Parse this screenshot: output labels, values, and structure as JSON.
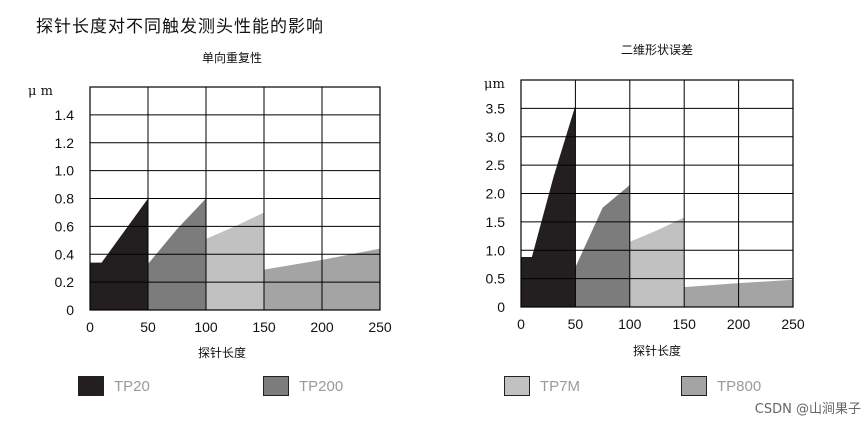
{
  "title": "探针长度对不同触发测头性能的影响",
  "colors": {
    "TP20": "#231f20",
    "TP200": "#7c7c7c",
    "TP7M": "#c1c1c1",
    "TP800": "#a4a4a4"
  },
  "legend": [
    {
      "name": "TP20",
      "color": "#231f20"
    },
    {
      "name": "TP200",
      "color": "#7c7c7c"
    },
    {
      "name": "TP7M",
      "color": "#c1c1c1"
    },
    {
      "name": "TP800",
      "color": "#a4a4a4"
    }
  ],
  "watermark": "CSDN @山涧果子",
  "chart_data": [
    {
      "type": "area",
      "title": "单向重复性",
      "xlabel": "探针长度",
      "ylabel": "μ m",
      "xlim": [
        0,
        250
      ],
      "ylim": [
        0,
        1.6
      ],
      "xticks": [
        0,
        50,
        100,
        150,
        200,
        250
      ],
      "yticks": [
        0,
        0.2,
        0.4,
        0.6,
        0.8,
        1.0,
        1.2,
        1.4
      ],
      "ytick_labels": [
        "0",
        "0.2",
        "0.4",
        "0.6",
        "0.8",
        "1.0",
        "1.2",
        "1.4"
      ],
      "grid": true,
      "series": [
        {
          "name": "TP800",
          "points": [
            [
              0,
              0.17
            ],
            [
              50,
              0.17
            ],
            [
              100,
              0.23
            ],
            [
              150,
              0.29
            ],
            [
              200,
              0.36
            ],
            [
              250,
              0.44
            ]
          ]
        },
        {
          "name": "TP7M",
          "points": [
            [
              100,
              0.51
            ],
            [
              125,
              0.6
            ],
            [
              150,
              0.7
            ]
          ]
        },
        {
          "name": "TP200",
          "points": [
            [
              50,
              0.33
            ],
            [
              75,
              0.58
            ],
            [
              100,
              0.8
            ]
          ]
        },
        {
          "name": "TP20",
          "points": [
            [
              0,
              0.34
            ],
            [
              10,
              0.34
            ],
            [
              50,
              0.8
            ]
          ]
        }
      ]
    },
    {
      "type": "area",
      "title": "二维形状误差",
      "xlabel": "探针长度",
      "ylabel": "μm",
      "xlim": [
        0,
        250
      ],
      "ylim": [
        0,
        4.0
      ],
      "xticks": [
        0,
        50,
        100,
        150,
        200,
        250
      ],
      "yticks": [
        0,
        0.5,
        1.0,
        1.5,
        2.0,
        2.5,
        3.0,
        3.5
      ],
      "ytick_labels": [
        "0",
        "0.5",
        "1.0",
        "1.5",
        "2.0",
        "2.5",
        "3.0",
        "3.5"
      ],
      "grid": true,
      "series": [
        {
          "name": "TP800",
          "points": [
            [
              0,
              0.22
            ],
            [
              50,
              0.22
            ],
            [
              100,
              0.3
            ],
            [
              150,
              0.35
            ],
            [
              200,
              0.42
            ],
            [
              250,
              0.48
            ]
          ]
        },
        {
          "name": "TP7M",
          "points": [
            [
              0,
              0.26
            ],
            [
              25,
              0.26
            ],
            [
              50,
              0.68
            ],
            [
              75,
              0.8
            ],
            [
              100,
              1.15
            ],
            [
              125,
              1.35
            ],
            [
              150,
              1.58
            ]
          ]
        },
        {
          "name": "TP200",
          "points": [
            [
              50,
              0.7
            ],
            [
              75,
              1.75
            ],
            [
              100,
              2.15
            ]
          ]
        },
        {
          "name": "TP20",
          "points": [
            [
              0,
              0.88
            ],
            [
              10,
              0.88
            ],
            [
              30,
              2.3
            ],
            [
              50,
              3.55
            ]
          ]
        }
      ]
    }
  ]
}
